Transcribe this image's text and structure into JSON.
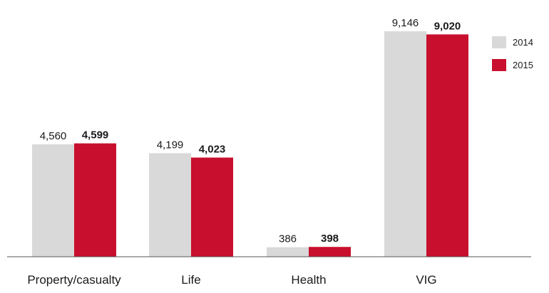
{
  "chart_data": {
    "type": "bar",
    "categories": [
      "Property/casualty",
      "Life",
      "Health",
      "VIG"
    ],
    "series": [
      {
        "name": "2014",
        "values": [
          4560,
          4199,
          386,
          9146
        ],
        "labels": [
          "4,560",
          "4,199",
          "386",
          "9,146"
        ],
        "color": "#d9d9d9",
        "bold_labels": false
      },
      {
        "name": "2015",
        "values": [
          4599,
          4023,
          398,
          9020
        ],
        "labels": [
          "4,599",
          "4,023",
          "398",
          "9,020"
        ],
        "color": "#c8102e",
        "bold_labels": true
      }
    ],
    "ylim": [
      0,
      9146
    ],
    "grid": false,
    "legend_position": "top-right"
  }
}
